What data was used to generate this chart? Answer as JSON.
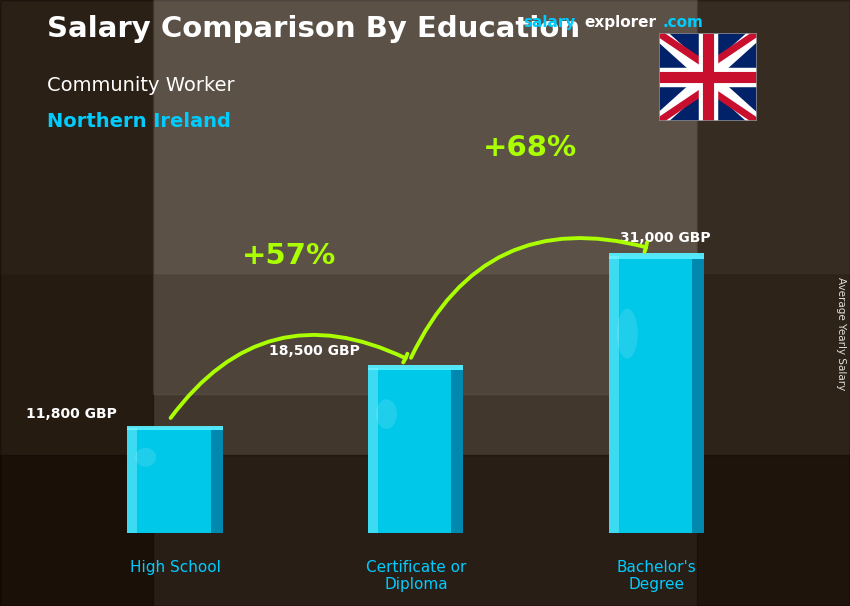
{
  "title_main": "Salary Comparison By Education",
  "subtitle1": "Community Worker",
  "subtitle2": "Northern Ireland",
  "categories": [
    "High School",
    "Certificate or\nDiploma",
    "Bachelor's\nDegree"
  ],
  "values": [
    11800,
    18500,
    31000
  ],
  "value_labels": [
    "11,800 GBP",
    "18,500 GBP",
    "31,000 GBP"
  ],
  "pct_labels": [
    "+57%",
    "+68%"
  ],
  "pct_color": "#aaff00",
  "bar_face_color": "#00c8e8",
  "bar_side_color": "#0088b0",
  "bar_top_color": "#55eeff",
  "bar_highlight_color": "#88f4ff",
  "title_color": "#ffffff",
  "subtitle1_color": "#ffffff",
  "subtitle2_color": "#00ccff",
  "value_label_color": "#ffffff",
  "category_label_color": "#00ccff",
  "side_label": "Average Yearly Salary",
  "watermark_salary": "salary",
  "watermark_explorer": "explorer",
  "watermark_com": ".com",
  "ylim_max": 42000,
  "bar_width": 0.38,
  "x_positions": [
    1.0,
    2.1,
    3.2
  ],
  "bg_colors": [
    "#5a4535",
    "#7a6050",
    "#4a3828",
    "#6a5040",
    "#8a7060",
    "#3a2818"
  ],
  "overlay_alpha": 0.38
}
